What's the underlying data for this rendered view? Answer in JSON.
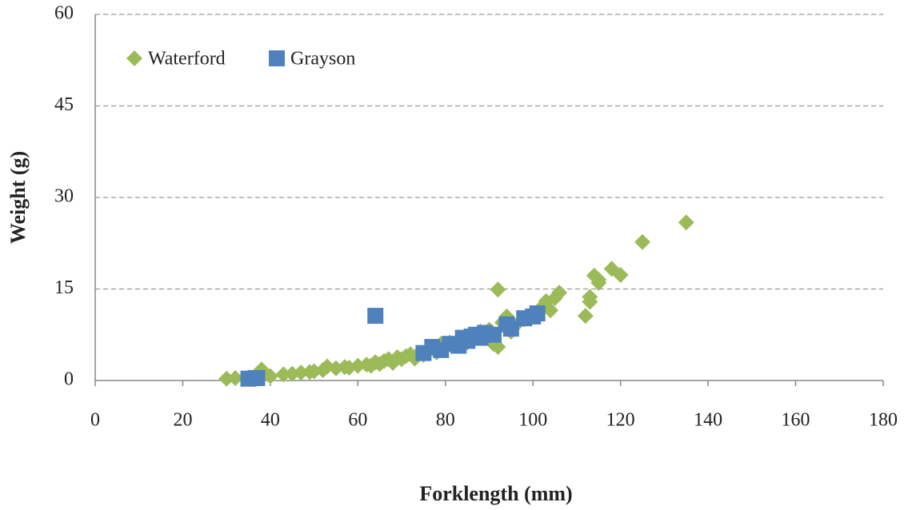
{
  "chart_data": {
    "type": "scatter",
    "x_label": "Forklength (mm)",
    "y_label": "Weight (g)",
    "xlim": [
      0,
      180
    ],
    "xticks": [
      0,
      20,
      40,
      60,
      80,
      100,
      120,
      140,
      160,
      180
    ],
    "ylim": [
      0,
      60
    ],
    "yticks": [
      0,
      15,
      30,
      45,
      60
    ],
    "grid": true,
    "legend": "upper-left",
    "series": [
      {
        "name": "Waterford",
        "color": "#9bbb59",
        "marker": "diamond",
        "x": [
          30,
          32,
          35,
          38,
          38,
          40,
          43,
          45,
          47,
          49,
          50,
          52,
          53,
          55,
          57,
          58,
          60,
          62,
          63,
          64,
          65,
          66,
          67,
          68,
          69,
          70,
          71,
          72,
          73,
          74,
          75,
          76,
          77,
          78,
          79,
          80,
          81,
          82,
          83,
          84,
          85,
          86,
          87,
          88,
          89,
          90,
          91,
          92,
          92,
          93,
          94,
          95,
          96,
          98,
          100,
          102,
          103,
          104,
          105,
          106,
          112,
          113,
          113,
          114,
          115,
          115,
          118,
          120,
          125,
          135
        ],
        "values": [
          0.3,
          0.4,
          0.5,
          1.8,
          0.8,
          0.7,
          1,
          1.1,
          1.3,
          1.4,
          1.5,
          1.7,
          2.3,
          2,
          2.2,
          2.1,
          2.4,
          2.6,
          2.4,
          3,
          2.7,
          3.2,
          3.5,
          2.9,
          3.8,
          3.5,
          4,
          4.3,
          3.6,
          4.5,
          4.2,
          5,
          5.4,
          4.6,
          6,
          5.5,
          6.2,
          5.8,
          6.5,
          7,
          6.2,
          7.5,
          7,
          8,
          7.3,
          8.3,
          6,
          5.5,
          14.9,
          9.5,
          10.5,
          8,
          9,
          10,
          11,
          12,
          13,
          11.5,
          13.5,
          14.4,
          10.6,
          12.9,
          13.7,
          17.2,
          16,
          16.5,
          18.3,
          17.3,
          22.7,
          25.9
        ]
      },
      {
        "name": "Grayson",
        "color": "#4f81bd",
        "marker": "square",
        "x": [
          35,
          37,
          64,
          75,
          77,
          79,
          81,
          83,
          84,
          85,
          86,
          87,
          88,
          89,
          91,
          94,
          95,
          98,
          100,
          101
        ],
        "values": [
          0.3,
          0.4,
          10.6,
          4.5,
          5.5,
          5,
          6,
          5.7,
          7,
          6.5,
          7.2,
          7.5,
          7,
          7.8,
          7.5,
          9.2,
          8.5,
          10.2,
          10.5,
          11
        ]
      }
    ]
  }
}
